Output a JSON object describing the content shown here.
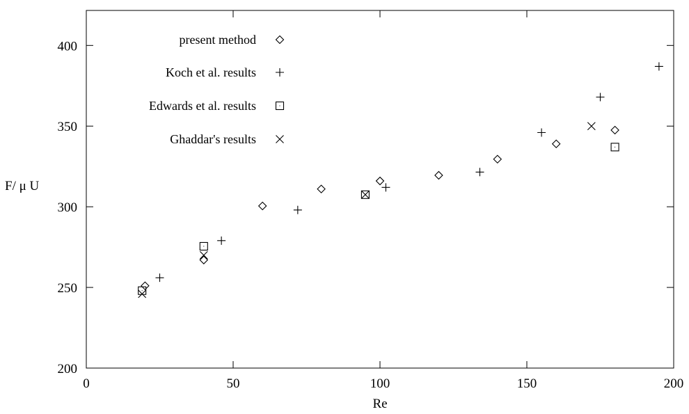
{
  "chart_data": {
    "type": "scatter",
    "title": "",
    "xlabel": "Re",
    "ylabel": "F/ μ U",
    "xlim": [
      0,
      200
    ],
    "ylim": [
      200,
      420
    ],
    "xticks": [
      0,
      50,
      100,
      150,
      200
    ],
    "yticks": [
      200,
      250,
      300,
      350,
      400
    ],
    "grid": false,
    "legend_position": "top-left",
    "series": [
      {
        "name": "present method",
        "marker": "diamond",
        "points": [
          [
            20,
            251
          ],
          [
            40,
            267
          ],
          [
            60,
            300.5
          ],
          [
            80,
            311
          ],
          [
            100,
            316
          ],
          [
            120,
            319.5
          ],
          [
            140,
            329.5
          ],
          [
            160,
            339
          ],
          [
            180,
            347.5
          ]
        ]
      },
      {
        "name": "Koch et al. results",
        "marker": "plus",
        "points": [
          [
            25,
            256
          ],
          [
            46,
            279
          ],
          [
            72,
            298
          ],
          [
            102,
            312
          ],
          [
            134,
            321.5
          ],
          [
            155,
            346
          ],
          [
            175,
            368
          ],
          [
            195,
            387
          ]
        ]
      },
      {
        "name": "Edwards et al. results",
        "marker": "square",
        "points": [
          [
            19,
            248
          ],
          [
            40,
            275.5
          ],
          [
            95,
            307.5
          ],
          [
            180,
            337
          ]
        ]
      },
      {
        "name": "Ghaddar's results",
        "marker": "cross",
        "points": [
          [
            19,
            246
          ],
          [
            40,
            270
          ],
          [
            95,
            307.5
          ],
          [
            172,
            350
          ]
        ]
      }
    ]
  }
}
